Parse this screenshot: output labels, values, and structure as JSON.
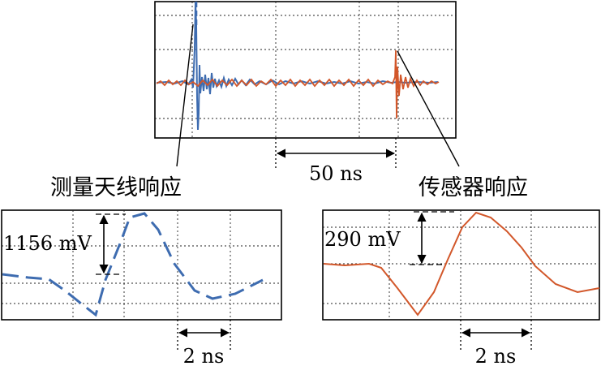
{
  "colors": {
    "antenna": "#3E6CB0",
    "sensor": "#D2572A",
    "ink": "#000000"
  },
  "labels": {
    "time_scale_main": "50 ns",
    "antenna_caption": "测量天线响应",
    "sensor_caption": "传感器响应",
    "antenna_amplitude": "1156 mV",
    "sensor_amplitude": "290 mV",
    "antenna_time_scale": "2 ns",
    "sensor_time_scale": "2 ns"
  }
}
